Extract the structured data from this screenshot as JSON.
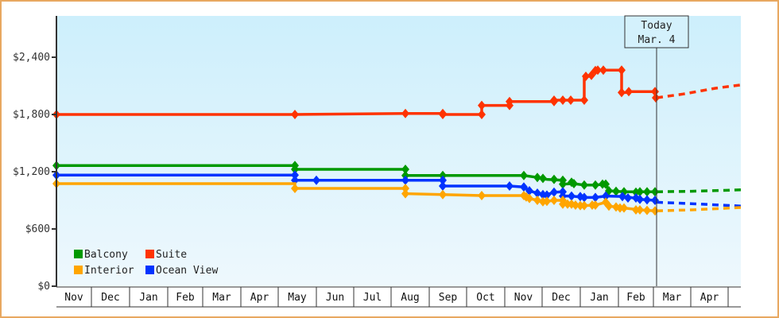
{
  "chart_data": {
    "type": "line",
    "title": "",
    "xlabel": "",
    "ylabel": "",
    "ylim": [
      0,
      2800
    ],
    "y_ticks": [
      {
        "value": 0,
        "label": "$0"
      },
      {
        "value": 600,
        "label": "$600"
      },
      {
        "value": 1200,
        "label": "$1,200"
      },
      {
        "value": 1800,
        "label": "$1,800"
      },
      {
        "value": 2400,
        "label": "$2,400"
      }
    ],
    "x_months": [
      "Nov",
      "Dec",
      "Jan",
      "Feb",
      "Mar",
      "Apr",
      "May",
      "Jun",
      "Jul",
      "Aug",
      "Sep",
      "Oct",
      "Nov",
      "Dec",
      "Jan",
      "Feb",
      "Mar",
      "Apr"
    ],
    "x_month_bounds": [
      71,
      115,
      163,
      211,
      255,
      303,
      350,
      398,
      445,
      492,
      540,
      587,
      635,
      682,
      730,
      778,
      822,
      869,
      916
    ],
    "today_marker": {
      "line1": "Today",
      "line2": "Mar. 4",
      "x": 826
    },
    "legend": [
      {
        "name": "Balcony",
        "color": "#009900"
      },
      {
        "name": "Suite",
        "color": "#ff3300"
      },
      {
        "name": "Interior",
        "color": "#ffa500"
      },
      {
        "name": "Ocean View",
        "color": "#0033ff"
      }
    ],
    "grid": false,
    "legend_position": "bottom-left inside plot",
    "series": [
      {
        "name": "Suite",
        "color": "#ff3300",
        "points": [
          [
            71,
            1800
          ],
          [
            371,
            1800
          ],
          [
            510,
            1810
          ],
          [
            557,
            1810
          ],
          [
            557,
            1800
          ],
          [
            606,
            1800
          ],
          [
            606,
            1895
          ],
          [
            641,
            1895
          ],
          [
            641,
            1935
          ],
          [
            697,
            1935
          ],
          [
            697,
            1950
          ],
          [
            708,
            1950
          ],
          [
            718,
            1950
          ],
          [
            735,
            1950
          ],
          [
            735,
            2200
          ],
          [
            742,
            2200
          ],
          [
            745,
            2240
          ],
          [
            749,
            2265
          ],
          [
            759,
            2265
          ],
          [
            782,
            2265
          ],
          [
            782,
            2030
          ],
          [
            788,
            2030
          ],
          [
            791,
            2040
          ],
          [
            824,
            2040
          ]
        ],
        "marker_points": [
          [
            71,
            1800
          ],
          [
            371,
            1800
          ],
          [
            510,
            1810
          ],
          [
            557,
            1810
          ],
          [
            557,
            1800
          ],
          [
            606,
            1800
          ],
          [
            606,
            1895
          ],
          [
            641,
            1895
          ],
          [
            641,
            1935
          ],
          [
            697,
            1935
          ],
          [
            697,
            1950
          ],
          [
            708,
            1950
          ],
          [
            718,
            1950
          ],
          [
            735,
            1950
          ],
          [
            737,
            2200
          ],
          [
            744,
            2210
          ],
          [
            749,
            2260
          ],
          [
            752,
            2265
          ],
          [
            759,
            2265
          ],
          [
            782,
            2265
          ],
          [
            782,
            2030
          ],
          [
            791,
            2040
          ],
          [
            824,
            2040
          ],
          [
            825,
            1975
          ]
        ],
        "forecast": [
          [
            826,
            1975
          ],
          [
            860,
            2015
          ],
          [
            900,
            2075
          ],
          [
            932,
            2110
          ]
        ]
      },
      {
        "name": "Balcony",
        "color": "#009900",
        "points": [
          [
            71,
            1265
          ],
          [
            371,
            1265
          ],
          [
            371,
            1225
          ],
          [
            510,
            1225
          ],
          [
            510,
            1160
          ],
          [
            557,
            1160
          ],
          [
            659,
            1160
          ],
          [
            676,
            1140
          ],
          [
            688,
            1120
          ],
          [
            708,
            1110
          ],
          [
            708,
            1070
          ],
          [
            722,
            1075
          ],
          [
            735,
            1060
          ],
          [
            749,
            1060
          ],
          [
            762,
            1070
          ],
          [
            766,
            1000
          ],
          [
            775,
            995
          ],
          [
            785,
            990
          ],
          [
            805,
            990
          ],
          [
            824,
            990
          ]
        ],
        "marker_points": [
          [
            71,
            1265
          ],
          [
            371,
            1265
          ],
          [
            371,
            1225
          ],
          [
            510,
            1225
          ],
          [
            510,
            1160
          ],
          [
            557,
            1160
          ],
          [
            659,
            1160
          ],
          [
            676,
            1140
          ],
          [
            683,
            1130
          ],
          [
            697,
            1120
          ],
          [
            708,
            1110
          ],
          [
            708,
            1070
          ],
          [
            719,
            1090
          ],
          [
            722,
            1075
          ],
          [
            735,
            1060
          ],
          [
            749,
            1060
          ],
          [
            758,
            1070
          ],
          [
            762,
            1070
          ],
          [
            766,
            1000
          ],
          [
            775,
            995
          ],
          [
            785,
            990
          ],
          [
            800,
            985
          ],
          [
            805,
            990
          ],
          [
            814,
            990
          ],
          [
            824,
            990
          ]
        ],
        "forecast": [
          [
            826,
            990
          ],
          [
            870,
            995
          ],
          [
            932,
            1010
          ]
        ]
      },
      {
        "name": "Ocean View",
        "color": "#0033ff",
        "points": [
          [
            71,
            1165
          ],
          [
            371,
            1165
          ],
          [
            371,
            1110
          ],
          [
            398,
            1110
          ],
          [
            510,
            1110
          ],
          [
            557,
            1110
          ],
          [
            557,
            1050
          ],
          [
            641,
            1050
          ],
          [
            659,
            1040
          ],
          [
            666,
            1000
          ],
          [
            676,
            975
          ],
          [
            688,
            960
          ],
          [
            697,
            985
          ],
          [
            708,
            990
          ],
          [
            708,
            945
          ],
          [
            719,
            945
          ],
          [
            735,
            930
          ],
          [
            749,
            930
          ],
          [
            762,
            945
          ],
          [
            788,
            940
          ],
          [
            805,
            910
          ],
          [
            824,
            900
          ]
        ],
        "marker_points": [
          [
            71,
            1165
          ],
          [
            371,
            1165
          ],
          [
            371,
            1110
          ],
          [
            398,
            1110
          ],
          [
            510,
            1110
          ],
          [
            557,
            1110
          ],
          [
            557,
            1050
          ],
          [
            641,
            1050
          ],
          [
            659,
            1040
          ],
          [
            666,
            1000
          ],
          [
            676,
            975
          ],
          [
            683,
            960
          ],
          [
            688,
            955
          ],
          [
            697,
            985
          ],
          [
            708,
            990
          ],
          [
            708,
            945
          ],
          [
            719,
            945
          ],
          [
            730,
            940
          ],
          [
            735,
            930
          ],
          [
            749,
            930
          ],
          [
            762,
            945
          ],
          [
            783,
            940
          ],
          [
            790,
            925
          ],
          [
            800,
            925
          ],
          [
            805,
            910
          ],
          [
            814,
            905
          ],
          [
            824,
            900
          ]
        ],
        "forecast": [
          [
            826,
            880
          ],
          [
            870,
            865
          ],
          [
            932,
            840
          ]
        ]
      },
      {
        "name": "Interior",
        "color": "#ffa500",
        "points": [
          [
            71,
            1075
          ],
          [
            371,
            1075
          ],
          [
            371,
            1025
          ],
          [
            510,
            1025
          ],
          [
            510,
            970
          ],
          [
            557,
            960
          ],
          [
            606,
            950
          ],
          [
            659,
            950
          ],
          [
            666,
            920
          ],
          [
            676,
            900
          ],
          [
            688,
            890
          ],
          [
            697,
            900
          ],
          [
            708,
            900
          ],
          [
            708,
            860
          ],
          [
            719,
            860
          ],
          [
            735,
            845
          ],
          [
            749,
            850
          ],
          [
            762,
            880
          ],
          [
            766,
            840
          ],
          [
            775,
            830
          ],
          [
            785,
            820
          ],
          [
            805,
            800
          ],
          [
            824,
            790
          ]
        ],
        "marker_points": [
          [
            71,
            1075
          ],
          [
            371,
            1025
          ],
          [
            510,
            1025
          ],
          [
            510,
            970
          ],
          [
            557,
            960
          ],
          [
            606,
            950
          ],
          [
            659,
            950
          ],
          [
            662,
            935
          ],
          [
            666,
            920
          ],
          [
            676,
            900
          ],
          [
            683,
            885
          ],
          [
            688,
            890
          ],
          [
            697,
            900
          ],
          [
            708,
            900
          ],
          [
            708,
            860
          ],
          [
            714,
            860
          ],
          [
            719,
            860
          ],
          [
            724,
            850
          ],
          [
            730,
            845
          ],
          [
            735,
            845
          ],
          [
            745,
            850
          ],
          [
            749,
            850
          ],
          [
            762,
            880
          ],
          [
            766,
            840
          ],
          [
            775,
            830
          ],
          [
            780,
            820
          ],
          [
            785,
            820
          ],
          [
            800,
            800
          ],
          [
            805,
            800
          ],
          [
            814,
            795
          ],
          [
            824,
            790
          ]
        ],
        "forecast": [
          [
            826,
            790
          ],
          [
            870,
            800
          ],
          [
            932,
            825
          ]
        ]
      }
    ]
  }
}
